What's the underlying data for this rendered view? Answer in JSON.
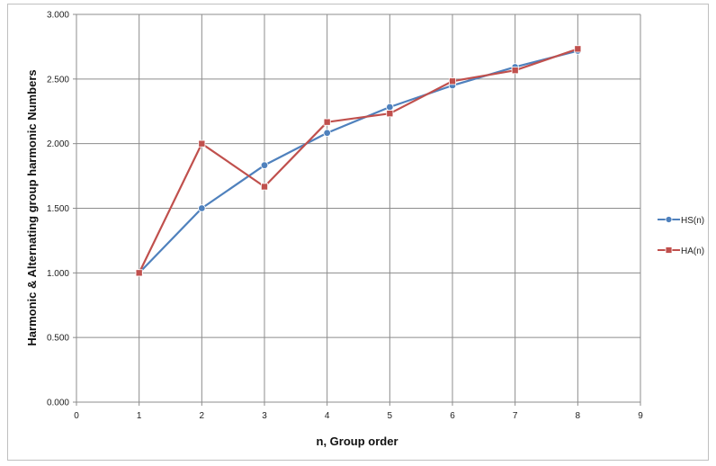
{
  "chart_data": {
    "type": "line",
    "title": "",
    "xlabel": "n, Group order",
    "ylabel": "Harmonic & Alternating group harmonic Numbers",
    "xlim": [
      0,
      9
    ],
    "ylim": [
      0,
      3
    ],
    "x_ticks": [
      0,
      1,
      2,
      3,
      4,
      5,
      6,
      7,
      8,
      9
    ],
    "y_ticks": [
      "0.000",
      "0.500",
      "1.000",
      "1.500",
      "2.000",
      "2.500",
      "3.000"
    ],
    "grid": true,
    "legend_position": "right",
    "x": [
      1,
      2,
      3,
      4,
      5,
      6,
      7,
      8
    ],
    "series": [
      {
        "name": "HS(n)",
        "color": "#4f81bd",
        "marker": "circle",
        "values": [
          1.0,
          1.5,
          1.833,
          2.083,
          2.283,
          2.45,
          2.593,
          2.718
        ]
      },
      {
        "name": "HA(n)",
        "color": "#c0504d",
        "marker": "square",
        "values": [
          1.0,
          2.0,
          1.667,
          2.167,
          2.233,
          2.483,
          2.567,
          2.733
        ]
      }
    ]
  }
}
